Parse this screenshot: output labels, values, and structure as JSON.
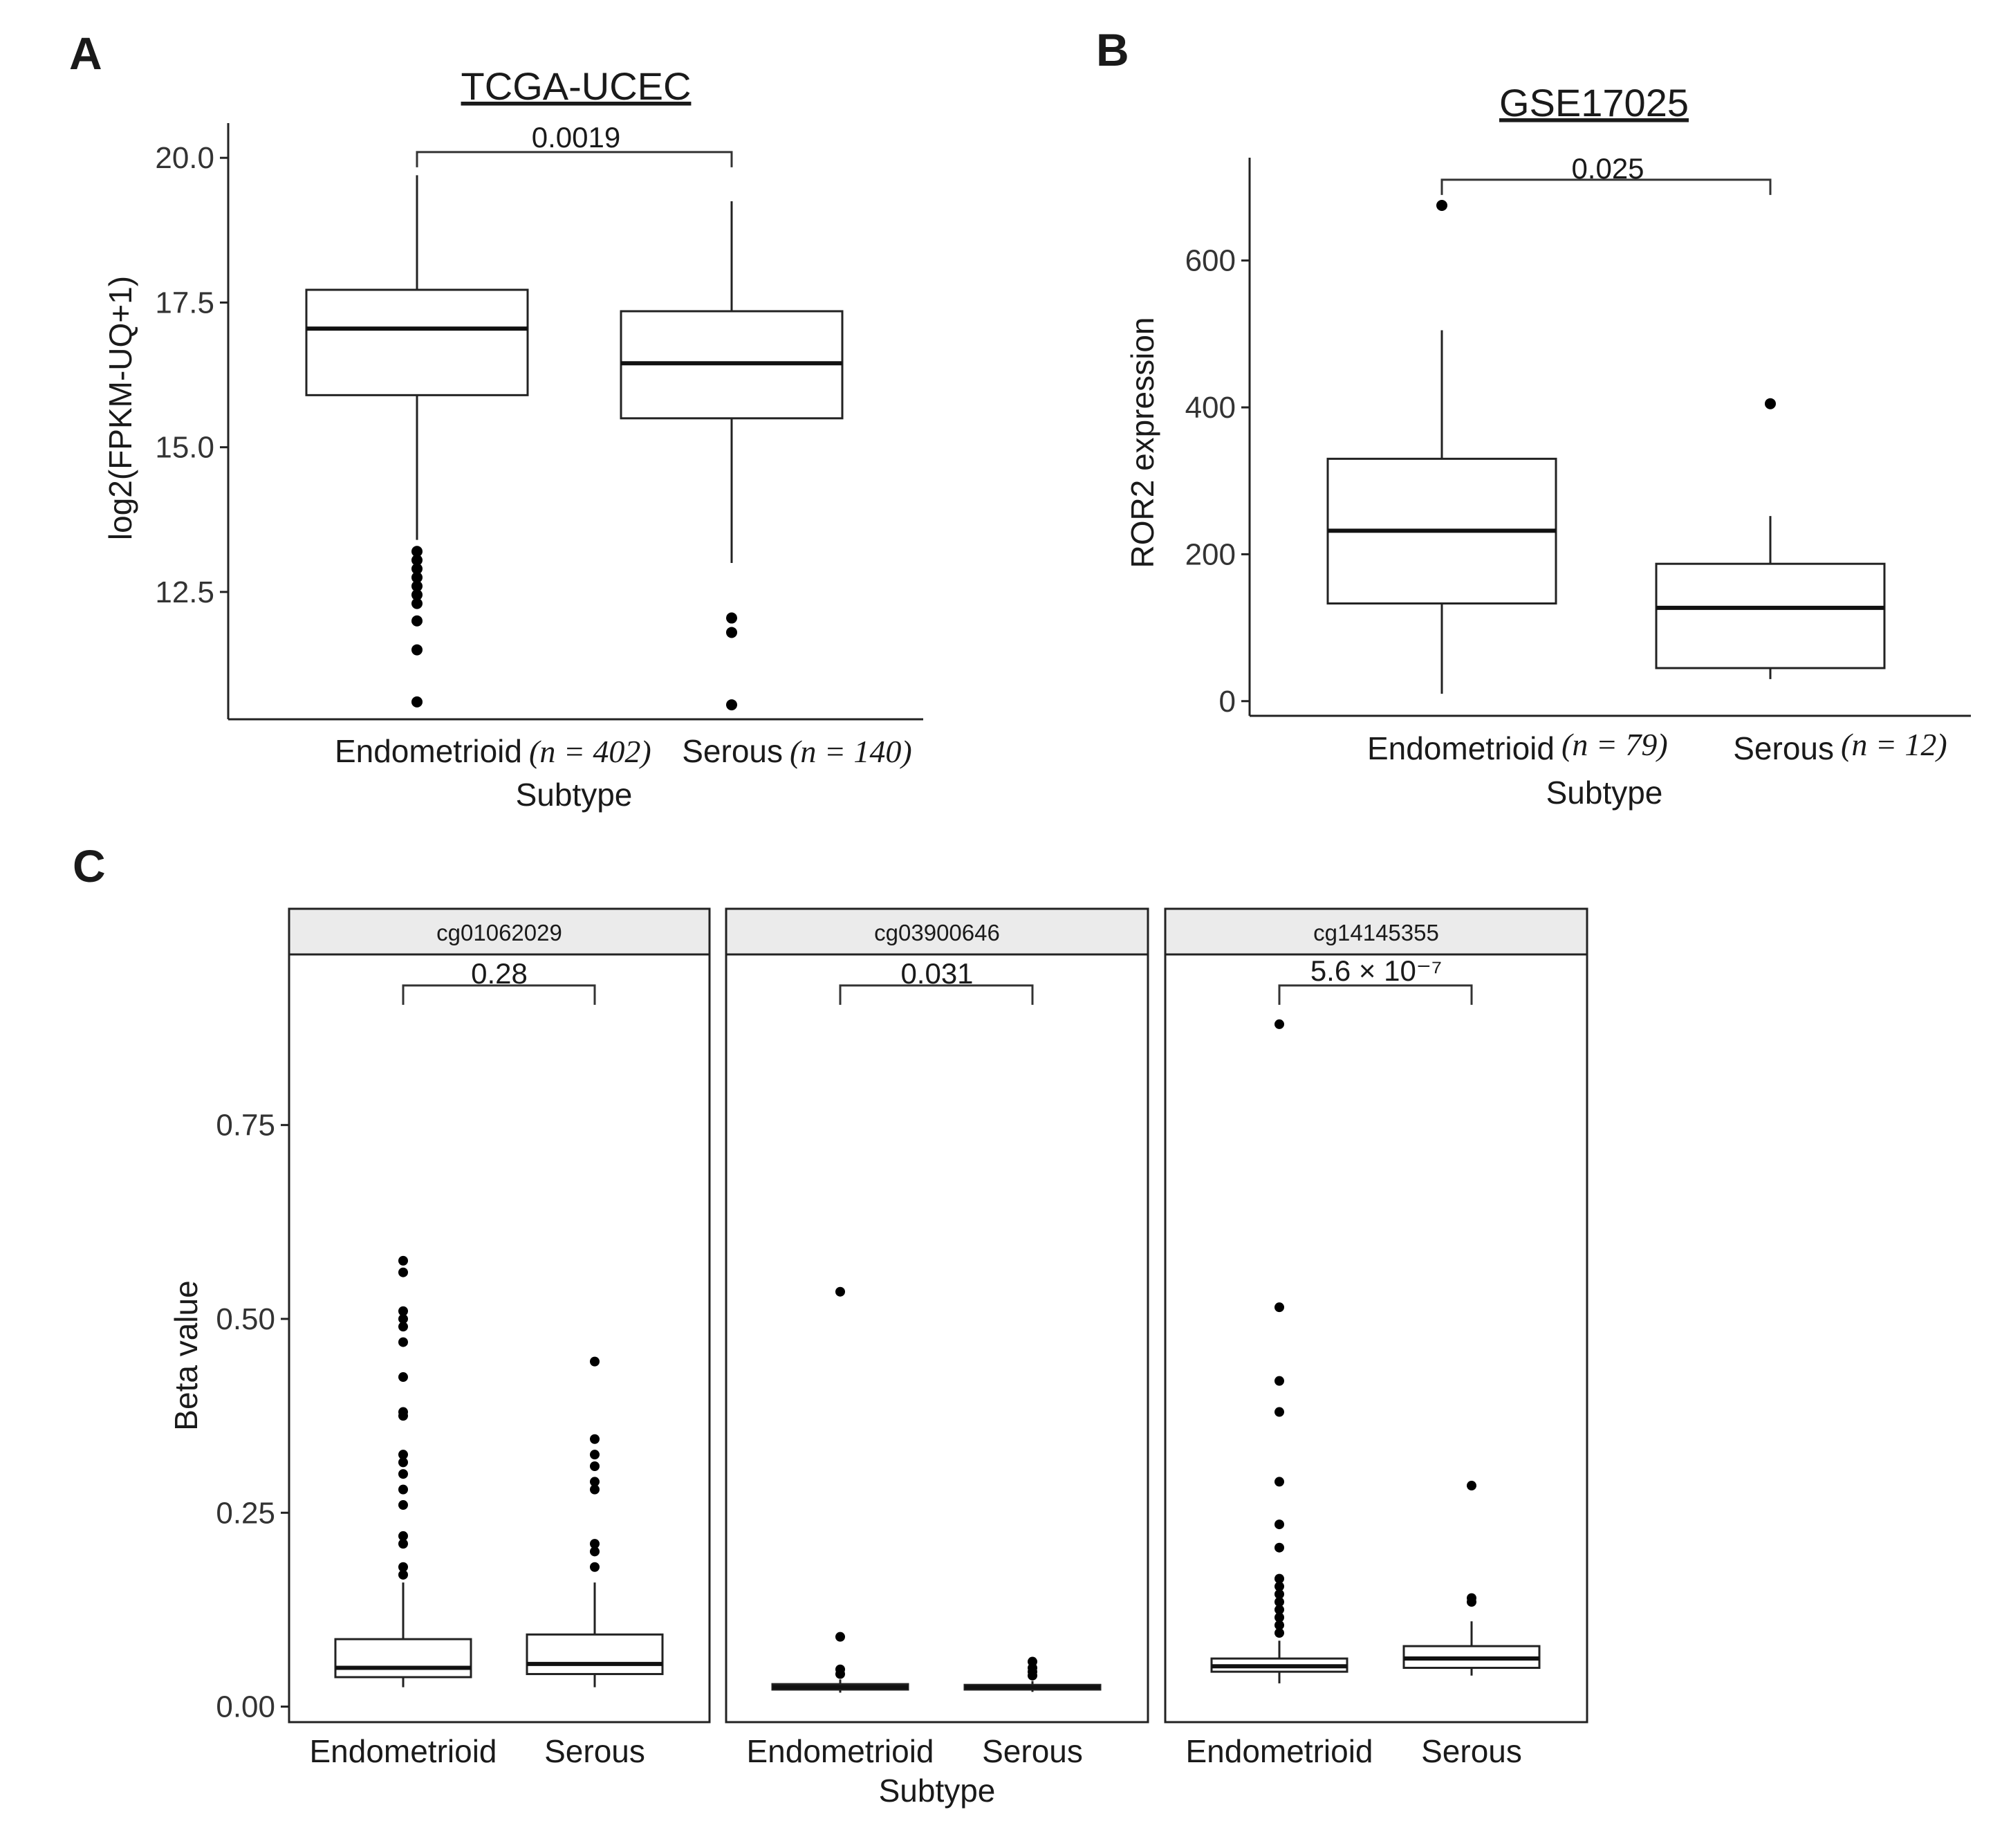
{
  "panels": {
    "A": {
      "letter": "A",
      "title": "TCGA-UCEC",
      "ylabel": "log2(FPKM-UQ+1)",
      "xlabel": "Subtype",
      "pvalue": "0.0019",
      "yticks": [
        "12.5",
        "15.0",
        "17.5",
        "20.0"
      ],
      "cat1_name": "Endometrioid",
      "cat1_n": "(n = 402)",
      "cat2_name": "Serous",
      "cat2_n": "(n = 140)"
    },
    "B": {
      "letter": "B",
      "title": "GSE17025",
      "ylabel": "ROR2 expression",
      "xlabel": "Subtype",
      "pvalue": "0.025",
      "yticks": [
        "0",
        "200",
        "400",
        "600"
      ],
      "cat1_name": "Endometrioid",
      "cat1_n": "(n = 79)",
      "cat2_name": "Serous",
      "cat2_n": "(n = 12)"
    },
    "C": {
      "letter": "C",
      "ylabel": "Beta value",
      "xlabel": "Subtype",
      "yticks": [
        "0.00",
        "0.25",
        "0.50",
        "0.75"
      ],
      "facets": [
        {
          "label": "cg01062029",
          "pvalue": "0.28",
          "cat1": "Endometrioid",
          "cat2": "Serous"
        },
        {
          "label": "cg03900646",
          "pvalue": "0.031",
          "cat1": "Endometrioid",
          "cat2": "Serous"
        },
        {
          "label": "cg14145355",
          "pvalue": "5.6 × 10⁻⁷",
          "cat1": "Endometrioid",
          "cat2": "Serous"
        }
      ]
    }
  },
  "chart_data": [
    {
      "type": "boxplot",
      "panel": "A",
      "title": "TCGA-UCEC",
      "xlabel": "Subtype",
      "ylabel": "log2(FPKM-UQ+1)",
      "ylim": [
        10.3,
        20.6
      ],
      "yticks": [
        12.5,
        15.0,
        17.5,
        20.0
      ],
      "categories": [
        "Endometrioid (n = 402)",
        "Serous (n = 140)"
      ],
      "series": [
        {
          "name": "Endometrioid",
          "whisker_low": 13.4,
          "q1": 15.9,
          "median": 17.05,
          "q3": 17.72,
          "whisker_high": 19.7,
          "outliers": [
            13.2,
            13.05,
            12.9,
            12.75,
            12.6,
            12.45,
            12.3,
            12.0,
            11.5,
            10.6
          ]
        },
        {
          "name": "Serous",
          "whisker_low": 13.0,
          "q1": 15.5,
          "median": 16.45,
          "q3": 17.35,
          "whisker_high": 19.25,
          "outliers": [
            12.05,
            11.8,
            10.55
          ]
        }
      ],
      "comparison": {
        "pvalue": "0.0019",
        "bracket_y": 20.1
      }
    },
    {
      "type": "boxplot",
      "panel": "B",
      "title": "GSE17025",
      "xlabel": "Subtype",
      "ylabel": "ROR2 expression",
      "ylim": [
        -20,
        740
      ],
      "yticks": [
        0,
        200,
        400,
        600
      ],
      "categories": [
        "Endometrioid (n = 79)",
        "Serous (n = 12)"
      ],
      "series": [
        {
          "name": "Endometrioid",
          "whisker_low": 10,
          "q1": 133,
          "median": 232,
          "q3": 330,
          "whisker_high": 505,
          "outliers": [
            675
          ]
        },
        {
          "name": "Serous",
          "whisker_low": 30,
          "q1": 45,
          "median": 127,
          "q3": 187,
          "whisker_high": 252,
          "outliers": [
            405
          ]
        }
      ],
      "comparison": {
        "pvalue": "0.025",
        "bracket_y": 710
      }
    },
    {
      "type": "boxplot",
      "panel": "C",
      "xlabel": "Subtype",
      "ylabel": "Beta value",
      "ylim": [
        -0.02,
        0.97
      ],
      "yticks": [
        0.0,
        0.25,
        0.5,
        0.75
      ],
      "facets": [
        {
          "label": "cg01062029",
          "categories": [
            "Endometrioid",
            "Serous"
          ],
          "series": [
            {
              "name": "Endometrioid",
              "whisker_low": 0.025,
              "q1": 0.038,
              "median": 0.05,
              "q3": 0.087,
              "whisker_high": 0.16,
              "outliers": [
                0.575,
                0.56,
                0.51,
                0.5,
                0.49,
                0.47,
                0.425,
                0.38,
                0.375,
                0.325,
                0.315,
                0.3,
                0.28,
                0.26,
                0.22,
                0.21,
                0.18,
                0.17
              ]
            },
            {
              "name": "Serous",
              "whisker_low": 0.025,
              "q1": 0.042,
              "median": 0.055,
              "q3": 0.093,
              "whisker_high": 0.16,
              "outliers": [
                0.445,
                0.345,
                0.325,
                0.31,
                0.29,
                0.28,
                0.21,
                0.2,
                0.18
              ]
            }
          ],
          "comparison": {
            "pvalue": "0.28",
            "bracket_y": 0.93
          }
        },
        {
          "label": "cg03900646",
          "categories": [
            "Endometrioid",
            "Serous"
          ],
          "series": [
            {
              "name": "Endometrioid",
              "whisker_low": 0.018,
              "q1": 0.022,
              "median": 0.025,
              "q3": 0.029,
              "whisker_high": 0.035,
              "outliers": [
                0.535,
                0.09,
                0.048,
                0.042
              ]
            },
            {
              "name": "Serous",
              "whisker_low": 0.019,
              "q1": 0.022,
              "median": 0.025,
              "q3": 0.028,
              "whisker_high": 0.033,
              "outliers": [
                0.058,
                0.05,
                0.045,
                0.04
              ]
            }
          ],
          "comparison": {
            "pvalue": "0.031",
            "bracket_y": 0.93
          }
        },
        {
          "label": "cg14145355",
          "categories": [
            "Endometrioid",
            "Serous"
          ],
          "series": [
            {
              "name": "Endometrioid",
              "whisker_low": 0.03,
              "q1": 0.045,
              "median": 0.052,
              "q3": 0.062,
              "whisker_high": 0.085,
              "outliers": [
                0.88,
                0.515,
                0.42,
                0.38,
                0.29,
                0.235,
                0.205,
                0.165,
                0.155,
                0.145,
                0.135,
                0.125,
                0.115,
                0.105,
                0.095
              ]
            },
            {
              "name": "Serous",
              "whisker_low": 0.04,
              "q1": 0.05,
              "median": 0.062,
              "q3": 0.078,
              "whisker_high": 0.11,
              "outliers": [
                0.285,
                0.14,
                0.135
              ]
            }
          ],
          "comparison": {
            "pvalue": "5.6 × 10⁻⁷",
            "bracket_y": 0.93
          }
        }
      ]
    }
  ]
}
